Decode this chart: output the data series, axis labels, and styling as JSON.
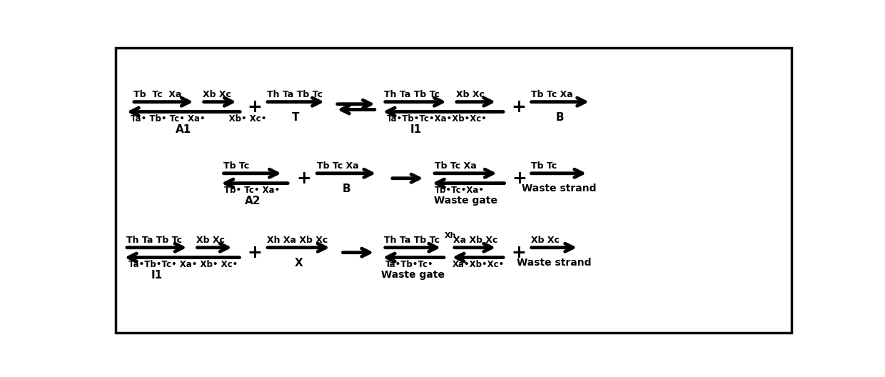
{
  "bg_color": "#ffffff",
  "border_color": "#000000",
  "figsize": [
    12.4,
    5.28
  ],
  "dpi": 100,
  "row1": {
    "A1_top1": "Tb  Tc  Xa",
    "A1_top2": "Xb Xc",
    "A1_bot": "Ta• Tb• Tc• Xa•        Xb• Xc•",
    "A1_label": "A1",
    "T_top": "Th Ta Tb Tc",
    "T_label": "T",
    "I1_top1": "Th Ta Tb Tc",
    "I1_top2": "Xb Xc",
    "I1_bot": "Ta•Tb•Tc•Xa•Xb•Xc•",
    "I1_label": "I1",
    "B1_top": "Tb Tc Xa",
    "B1_label": "B"
  },
  "row2": {
    "A2_top": "Tb Tc",
    "A2_bot": "Tb• Tc• Xa•",
    "A2_label": "A2",
    "B_top": "Tb Tc Xa",
    "B_label": "B",
    "WG_top": "Tb Tc Xa",
    "WG_bot": "Tb•Tc•Xa•",
    "WG_label": "Waste gate",
    "WS_top": "Tb Tc",
    "WS_label": "Waste strand"
  },
  "row3": {
    "I1_top1": "Th Ta Tb Tc",
    "I1_top2": "Xb Xc",
    "I1_bot": "Ta•Tb•Tc• Xa• Xb• Xc•",
    "I1_label": "I1",
    "X_top": "Xh Xa Xb Xc",
    "X_label": "X",
    "WG2_top1": "Th Ta Tb Tc",
    "WG2_top2": "Xh",
    "WG2_top3": "Xa Xb Xc",
    "WG2_bot1": "Ta•Tb•Tc•",
    "WG2_bot2": "Xa•Xb•Xc•",
    "WG2_label": "Waste gate",
    "WS2_top": "Xb Xc",
    "WS2_label": "Waste strand"
  }
}
